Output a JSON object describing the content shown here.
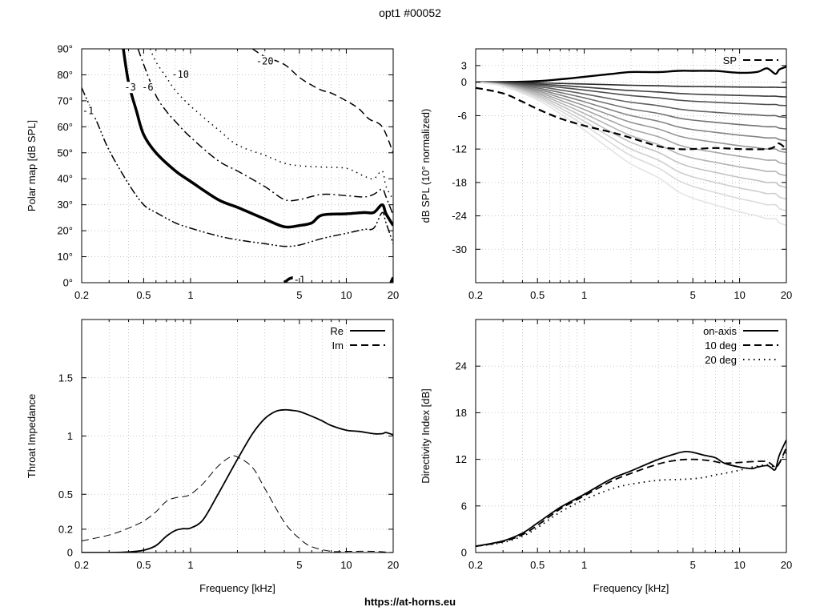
{
  "page": {
    "title": "opt1 #00052",
    "footer": "https://at-horns.eu"
  },
  "chart_data": [
    {
      "id": "polar",
      "type": "line",
      "xscale": "log",
      "xlim": [
        0.2,
        20
      ],
      "ylim": [
        0,
        90
      ],
      "x_ticks": [
        0.2,
        0.5,
        1,
        5,
        10,
        20
      ],
      "x_tick_labels": [
        "0.2",
        "0.5",
        "1",
        "5",
        "10",
        "20"
      ],
      "y_ticks": [
        0,
        10,
        20,
        30,
        40,
        50,
        60,
        70,
        80,
        90
      ],
      "y_tick_labels": [
        "0°",
        "10°",
        "20°",
        "30°",
        "40°",
        "50°",
        "60°",
        "70°",
        "80°",
        "90°"
      ],
      "xlabel": "",
      "ylabel": "Polar map [dB SPL]",
      "grid": true,
      "series": [
        {
          "name": "-1",
          "style": "dashdotdot",
          "width": 1.5,
          "x": [
            0.2,
            0.25,
            0.3,
            0.4,
            0.5,
            0.6,
            0.8,
            1,
            1.5,
            2,
            3,
            4,
            5,
            7,
            10,
            13,
            15,
            17,
            18,
            20
          ],
          "y": [
            75,
            62,
            51,
            38,
            30,
            27,
            23,
            21,
            18,
            16.5,
            15,
            14,
            14.5,
            17,
            19,
            20.5,
            21,
            27,
            23,
            15
          ]
        },
        {
          "name": "-3",
          "style": "solid",
          "width": 3.5,
          "x": [
            0.37,
            0.4,
            0.45,
            0.5,
            0.6,
            0.8,
            1,
            1.5,
            2,
            3,
            4,
            5,
            6,
            7,
            10,
            13,
            15,
            17,
            18,
            20
          ],
          "y": [
            90,
            77,
            66,
            57,
            50,
            43,
            39,
            32,
            29,
            24.5,
            21.5,
            22,
            23,
            26,
            26.5,
            27,
            27,
            30,
            26.5,
            22
          ]
        },
        {
          "name": "-6",
          "style": "dashdot",
          "width": 1.5,
          "x": [
            0.46,
            0.5,
            0.6,
            0.7,
            0.8,
            1,
            1.5,
            2,
            3,
            4,
            5,
            7,
            10,
            13,
            15,
            17,
            18,
            20
          ],
          "y": [
            90,
            84,
            72,
            66,
            62,
            56,
            47,
            43,
            37,
            32,
            32,
            34,
            33.5,
            33,
            34,
            36,
            33,
            26
          ]
        },
        {
          "name": "-10",
          "style": "dotted",
          "width": 1.5,
          "x": [
            0.55,
            0.6,
            0.7,
            0.8,
            1,
            1.5,
            2,
            3,
            4,
            5,
            7,
            10,
            13,
            15,
            17,
            18,
            20
          ],
          "y": [
            90,
            85,
            79,
            74,
            68,
            59,
            53,
            49,
            46,
            45,
            44.5,
            44,
            41,
            40,
            43,
            37,
            32
          ]
        },
        {
          "name": "-20",
          "style": "dashed",
          "width": 1.5,
          "x": [
            2.5,
            3,
            4,
            5,
            6,
            7,
            8,
            10,
            12,
            14,
            17,
            20
          ],
          "y": [
            90,
            87,
            84,
            79,
            76,
            74,
            73,
            70,
            67,
            63,
            60,
            50
          ]
        },
        {
          "name": "-1",
          "style": "solid",
          "width": 3.5,
          "x": [
            4,
            4.3,
            4.6
          ],
          "y": [
            0,
            1.5,
            2
          ]
        },
        {
          "name": "",
          "style": "solid",
          "width": 3.5,
          "x": [
            19.3,
            20
          ],
          "y": [
            0,
            2
          ]
        }
      ],
      "contour_labels": [
        {
          "text": "-1",
          "x": 0.22,
          "y": 66
        },
        {
          "text": "-3",
          "x": 0.41,
          "y": 75
        },
        {
          "text": "-6",
          "x": 0.53,
          "y": 75
        },
        {
          "text": "-10",
          "x": 0.86,
          "y": 80
        },
        {
          "text": "-20",
          "x": 3.0,
          "y": 85
        },
        {
          "text": "-1",
          "x": 5.0,
          "y": 1
        }
      ]
    },
    {
      "id": "spl",
      "type": "line",
      "xscale": "log",
      "xlim": [
        0.2,
        20
      ],
      "ylim": [
        -36,
        6
      ],
      "x_ticks": [
        0.2,
        0.5,
        1,
        5,
        10,
        20
      ],
      "x_tick_labels": [
        "0.2",
        "0.5",
        "1",
        "5",
        "10",
        "20"
      ],
      "y_ticks": [
        3,
        0,
        -6,
        -12,
        -18,
        -24,
        -30
      ],
      "y_tick_labels": [
        "3",
        "0",
        "-6",
        "-12",
        "-18",
        "-24",
        "-30"
      ],
      "xlabel": "",
      "ylabel": "dB SPL (10° normalized)",
      "grid": true,
      "legend": {
        "position": "top-right",
        "entries": [
          {
            "label": "SP",
            "style": "dashed"
          }
        ]
      },
      "family_x": [
        0.2,
        0.3,
        0.5,
        0.7,
        1,
        1.5,
        2,
        3,
        4,
        5,
        7,
        10,
        13,
        15,
        17,
        18,
        20
      ],
      "family_offsets": [
        0,
        0,
        0.3,
        1.2,
        2.5,
        4,
        5,
        4.5,
        5,
        4.8,
        4.5,
        3,
        3.5,
        6,
        2,
        5,
        7
      ],
      "family_scales": [
        -0.1,
        0.09,
        0.25,
        0.4,
        0.6,
        0.8,
        1.0,
        1.2,
        1.4,
        1.6,
        1.8,
        2.0,
        2.2,
        2.45
      ],
      "family_colors": [
        "#000000",
        "#2b2b2b",
        "#3c3c3c",
        "#4e4e4e",
        "#606060",
        "#727272",
        "#848484",
        "#969696",
        "#a6a6a6",
        "#b4b4b4",
        "#c2c2c2",
        "#cfcfcf",
        "#dadada",
        "#e4e4e4"
      ],
      "family_base": [
        0,
        -0.3,
        -1.3,
        -2.3,
        -3.5,
        -5,
        -6,
        -7,
        -8,
        -8.5,
        -9,
        -9.5,
        -9.8,
        -10,
        -10,
        -10.3,
        -10.5
      ],
      "series": [
        {
          "name": "SP",
          "style": "dashed",
          "width": 2.2,
          "x": [
            0.2,
            0.3,
            0.4,
            0.5,
            0.7,
            1,
            1.5,
            2,
            3,
            4,
            5,
            7,
            10,
            15,
            17,
            18,
            20
          ],
          "y": [
            -1,
            -2,
            -3.5,
            -4.8,
            -6.5,
            -7.8,
            -9,
            -10,
            -11.5,
            -12,
            -12,
            -11.8,
            -12,
            -12,
            -11.5,
            -11,
            -12
          ]
        }
      ]
    },
    {
      "id": "impedance",
      "type": "line",
      "xscale": "log",
      "xlim": [
        0.2,
        20
      ],
      "ylim": [
        0,
        2
      ],
      "x_ticks": [
        0.2,
        0.5,
        1,
        5,
        10,
        20
      ],
      "x_tick_labels": [
        "0.2",
        "0.5",
        "1",
        "5",
        "10",
        "20"
      ],
      "y_ticks": [
        0,
        0.2,
        0.5,
        1,
        1.5
      ],
      "y_tick_labels": [
        "0",
        "0.2",
        "0.5",
        "1",
        "1.5"
      ],
      "xlabel": "Frequency [kHz]",
      "ylabel": "Throat Impedance",
      "grid": true,
      "legend": {
        "position": "top-right",
        "entries": [
          {
            "label": "Re",
            "style": "solid"
          },
          {
            "label": "Im",
            "style": "dashed"
          }
        ]
      },
      "series": [
        {
          "name": "Re",
          "style": "solid",
          "width": 1.8,
          "x": [
            0.2,
            0.3,
            0.4,
            0.5,
            0.6,
            0.7,
            0.8,
            0.9,
            1,
            1.2,
            1.5,
            2,
            2.5,
            3,
            3.5,
            4,
            4.5,
            5,
            6,
            7,
            8,
            10,
            12,
            15,
            17,
            18,
            20
          ],
          "y": [
            0,
            0,
            0.005,
            0.02,
            0.06,
            0.14,
            0.19,
            0.205,
            0.21,
            0.28,
            0.5,
            0.8,
            1.02,
            1.15,
            1.21,
            1.225,
            1.22,
            1.21,
            1.17,
            1.13,
            1.09,
            1.05,
            1.04,
            1.02,
            1.02,
            1.03,
            1.01
          ]
        },
        {
          "name": "Im",
          "style": "dashed",
          "width": 1,
          "x": [
            0.2,
            0.3,
            0.4,
            0.5,
            0.6,
            0.7,
            0.8,
            0.9,
            1,
            1.2,
            1.5,
            1.8,
            2,
            2.5,
            3,
            4,
            5,
            6,
            8,
            10,
            15,
            20
          ],
          "y": [
            0.1,
            0.15,
            0.21,
            0.27,
            0.35,
            0.44,
            0.47,
            0.48,
            0.5,
            0.59,
            0.74,
            0.82,
            0.82,
            0.73,
            0.55,
            0.26,
            0.12,
            0.05,
            0.01,
            0.01,
            0.01,
            0
          ]
        }
      ]
    },
    {
      "id": "di",
      "type": "line",
      "xscale": "log",
      "xlim": [
        0.2,
        20
      ],
      "ylim": [
        0,
        30
      ],
      "x_ticks": [
        0.2,
        0.5,
        1,
        5,
        10,
        20
      ],
      "x_tick_labels": [
        "0.2",
        "0.5",
        "1",
        "5",
        "10",
        "20"
      ],
      "y_ticks": [
        0,
        6,
        12,
        18,
        24
      ],
      "y_tick_labels": [
        "0",
        "6",
        "12",
        "18",
        "24"
      ],
      "xlabel": "Frequency [kHz]",
      "ylabel": "Directivity Index [dB]",
      "grid": true,
      "legend": {
        "position": "top-right",
        "entries": [
          {
            "label": "on-axis",
            "style": "solid"
          },
          {
            "label": "10 deg",
            "style": "dashed"
          },
          {
            "label": "20 deg",
            "style": "dotted"
          }
        ]
      },
      "series": [
        {
          "name": "on-axis",
          "style": "solid",
          "width": 1.8,
          "x": [
            0.2,
            0.3,
            0.4,
            0.5,
            0.7,
            1,
            1.5,
            2,
            3,
            4,
            4.5,
            5,
            6,
            7,
            8,
            10,
            12,
            13,
            15,
            16,
            17,
            18,
            20
          ],
          "y": [
            0.8,
            1.5,
            2.5,
            3.8,
            5.8,
            7.5,
            9.5,
            10.5,
            12,
            12.8,
            13,
            12.9,
            12.5,
            12.2,
            11.5,
            11,
            10.8,
            11,
            11.2,
            10.9,
            10.7,
            12.5,
            14.5
          ]
        },
        {
          "name": "10 deg",
          "style": "dashed",
          "width": 1.8,
          "x": [
            0.2,
            0.3,
            0.4,
            0.5,
            0.7,
            1,
            1.5,
            2,
            3,
            4,
            5,
            6,
            7,
            8,
            10,
            12,
            15,
            17,
            18,
            20
          ],
          "y": [
            0.8,
            1.4,
            2.3,
            3.5,
            5.6,
            7.3,
            9.2,
            10.2,
            11.4,
            11.9,
            12,
            11.9,
            11.7,
            11.5,
            11.6,
            11.7,
            11.7,
            11,
            11.5,
            13.5
          ]
        },
        {
          "name": "20 deg",
          "style": "dotted",
          "width": 1.8,
          "x": [
            0.2,
            0.3,
            0.4,
            0.5,
            0.7,
            1,
            1.5,
            2,
            3,
            4,
            5,
            6,
            7,
            8,
            10,
            12,
            15,
            17,
            18,
            20
          ],
          "y": [
            0.8,
            1.3,
            2.1,
            3.2,
            5.2,
            6.8,
            8.2,
            8.8,
            9.3,
            9.4,
            9.5,
            9.7,
            10,
            10.2,
            10.6,
            11,
            11.3,
            11,
            11.5,
            13
          ]
        }
      ]
    }
  ]
}
